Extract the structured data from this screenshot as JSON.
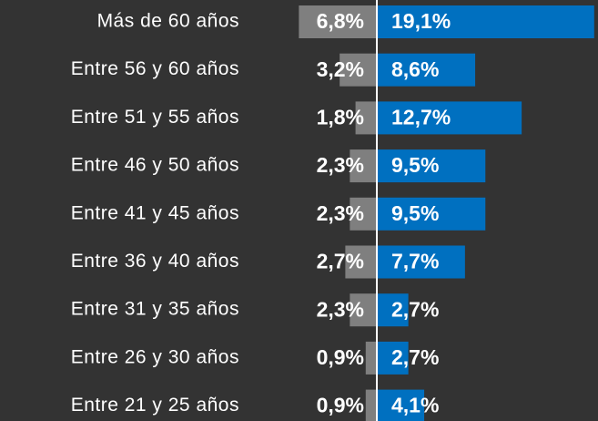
{
  "chart_data": {
    "type": "diverging-bar",
    "categories": [
      "Más de 60 años",
      "Entre 56 y 60 años",
      "Entre 51 y 55 años",
      "Entre 46 y 50 años",
      "Entre 41 y 45 años",
      "Entre 36 y 40 años",
      "Entre 31 y 35 años",
      "Entre 26 y 30 años",
      "Entre 21 y 25 años"
    ],
    "series": [
      {
        "color": "#7f7f7f",
        "values": [
          6.8,
          3.2,
          1.8,
          2.3,
          2.3,
          2.7,
          2.3,
          0.9,
          0.9
        ],
        "value_labels": [
          "6,8%",
          "3,2%",
          "1,8%",
          "2,3%",
          "2,3%",
          "2,7%",
          "2,3%",
          "0,9%",
          "0,9%"
        ]
      },
      {
        "color": "#0070c0",
        "values": [
          19.1,
          8.6,
          12.7,
          9.5,
          9.5,
          7.7,
          2.7,
          2.7,
          4.1
        ],
        "value_labels": [
          "19,1%",
          "8,6%",
          "12,7%",
          "9,5%",
          "9,5%",
          "7,7%",
          "2,7%",
          "2,7%",
          "4,1%"
        ]
      }
    ],
    "xlim": [
      0,
      20
    ]
  }
}
